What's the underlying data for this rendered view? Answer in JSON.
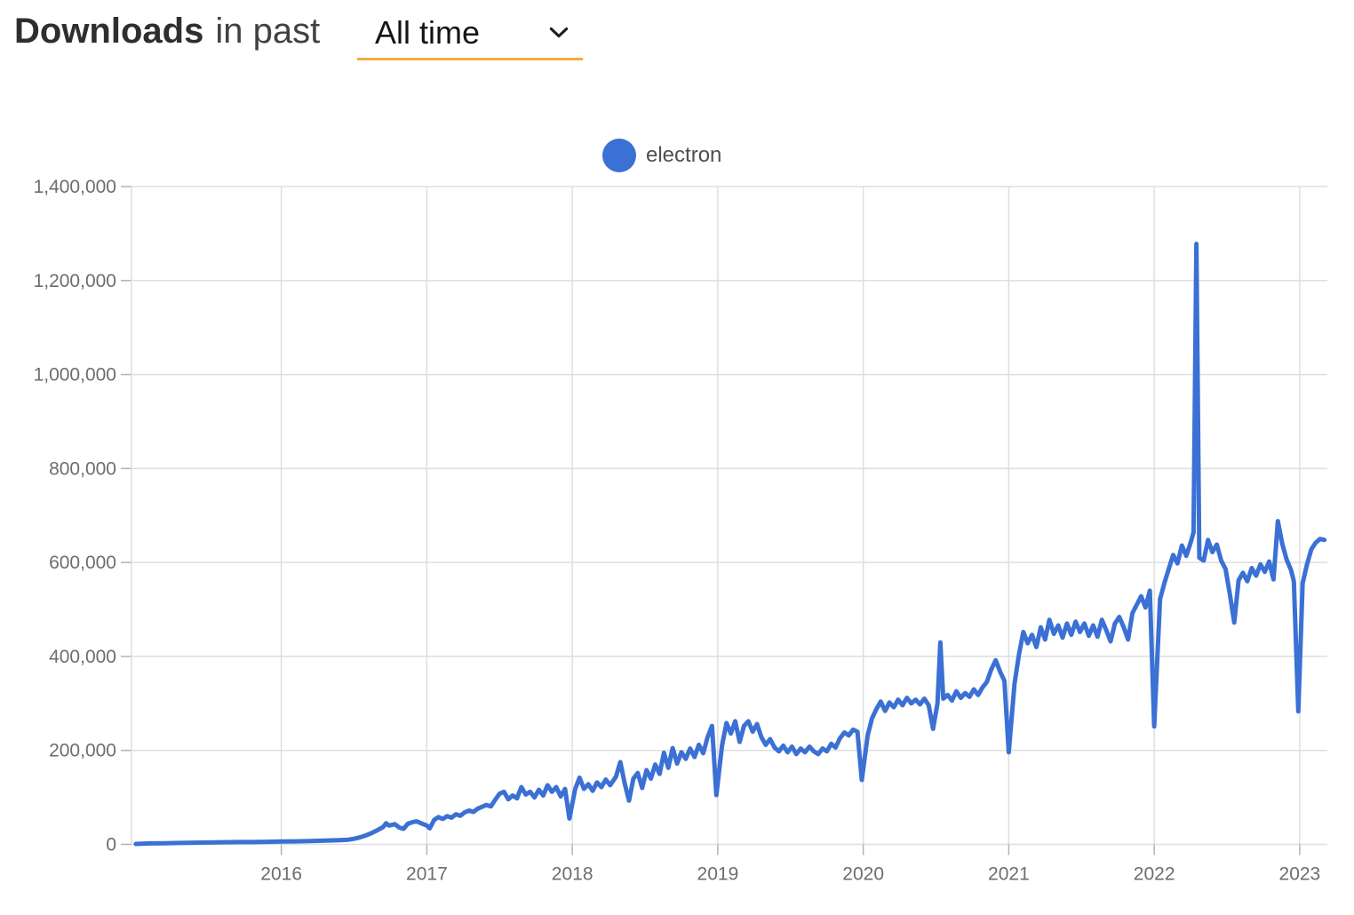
{
  "header": {
    "title": "Downloads",
    "subtitle": "in past",
    "range_selector": {
      "value": "All time"
    }
  },
  "legend": [
    {
      "label": "electron",
      "color": "#3B70D4"
    }
  ],
  "colors": {
    "series_blue": "#3B70D4",
    "underline_orange": "#F3A93F",
    "axis_label": "#6d6d6d",
    "gridline": "#dedede",
    "tick": "#b3b3b3",
    "legend_text": "#4f4f4f",
    "title_text": "#2e2e2e"
  },
  "chart_data": {
    "type": "line",
    "title": "",
    "xlabel": "",
    "ylabel": "",
    "grid": true,
    "legend_position": "top-center",
    "x_ticks": [
      2016,
      2017,
      2018,
      2019,
      2020,
      2021,
      2022,
      2023
    ],
    "y_ticks": [
      0,
      200000,
      400000,
      600000,
      800000,
      1000000,
      1200000,
      1400000
    ],
    "x_range": [
      2014.97,
      2023.19
    ],
    "y_range": [
      0,
      1400000
    ],
    "series": [
      {
        "name": "electron",
        "color": "#3B70D4",
        "points": [
          [
            2015.0,
            1000
          ],
          [
            2015.1,
            2000
          ],
          [
            2015.2,
            2500
          ],
          [
            2015.3,
            3000
          ],
          [
            2015.4,
            3500
          ],
          [
            2015.5,
            4000
          ],
          [
            2015.6,
            4500
          ],
          [
            2015.7,
            5000
          ],
          [
            2015.8,
            5000
          ],
          [
            2015.9,
            5500
          ],
          [
            2016.0,
            6000
          ],
          [
            2016.1,
            6500
          ],
          [
            2016.2,
            7000
          ],
          [
            2016.3,
            8000
          ],
          [
            2016.4,
            9000
          ],
          [
            2016.46,
            10000
          ],
          [
            2016.5,
            12000
          ],
          [
            2016.54,
            15000
          ],
          [
            2016.58,
            19000
          ],
          [
            2016.62,
            24000
          ],
          [
            2016.66,
            30000
          ],
          [
            2016.7,
            37000
          ],
          [
            2016.72,
            45000
          ],
          [
            2016.74,
            40000
          ],
          [
            2016.78,
            43000
          ],
          [
            2016.81,
            36000
          ],
          [
            2016.84,
            33000
          ],
          [
            2016.87,
            44000
          ],
          [
            2016.9,
            47000
          ],
          [
            2016.93,
            49000
          ],
          [
            2016.96,
            45000
          ],
          [
            2017.0,
            40000
          ],
          [
            2017.02,
            34000
          ],
          [
            2017.05,
            52000
          ],
          [
            2017.08,
            58000
          ],
          [
            2017.11,
            54000
          ],
          [
            2017.14,
            60000
          ],
          [
            2017.17,
            57000
          ],
          [
            2017.2,
            64000
          ],
          [
            2017.23,
            61000
          ],
          [
            2017.26,
            68000
          ],
          [
            2017.29,
            72000
          ],
          [
            2017.32,
            69000
          ],
          [
            2017.35,
            76000
          ],
          [
            2017.38,
            80000
          ],
          [
            2017.41,
            84000
          ],
          [
            2017.44,
            81000
          ],
          [
            2017.47,
            95000
          ],
          [
            2017.5,
            108000
          ],
          [
            2017.53,
            112000
          ],
          [
            2017.56,
            96000
          ],
          [
            2017.59,
            104000
          ],
          [
            2017.62,
            98000
          ],
          [
            2017.65,
            122000
          ],
          [
            2017.68,
            106000
          ],
          [
            2017.71,
            112000
          ],
          [
            2017.74,
            100000
          ],
          [
            2017.77,
            116000
          ],
          [
            2017.8,
            104000
          ],
          [
            2017.83,
            126000
          ],
          [
            2017.86,
            112000
          ],
          [
            2017.89,
            122000
          ],
          [
            2017.92,
            102000
          ],
          [
            2017.95,
            118000
          ],
          [
            2017.98,
            55000
          ],
          [
            2018.02,
            118000
          ],
          [
            2018.05,
            142000
          ],
          [
            2018.08,
            118000
          ],
          [
            2018.11,
            128000
          ],
          [
            2018.14,
            114000
          ],
          [
            2018.17,
            132000
          ],
          [
            2018.2,
            122000
          ],
          [
            2018.23,
            138000
          ],
          [
            2018.26,
            126000
          ],
          [
            2018.3,
            144000
          ],
          [
            2018.33,
            175000
          ],
          [
            2018.36,
            130000
          ],
          [
            2018.39,
            93000
          ],
          [
            2018.42,
            140000
          ],
          [
            2018.45,
            152000
          ],
          [
            2018.48,
            120000
          ],
          [
            2018.51,
            158000
          ],
          [
            2018.54,
            140000
          ],
          [
            2018.57,
            170000
          ],
          [
            2018.6,
            150000
          ],
          [
            2018.63,
            195000
          ],
          [
            2018.66,
            163000
          ],
          [
            2018.69,
            205000
          ],
          [
            2018.72,
            172000
          ],
          [
            2018.75,
            196000
          ],
          [
            2018.78,
            182000
          ],
          [
            2018.81,
            204000
          ],
          [
            2018.84,
            186000
          ],
          [
            2018.87,
            212000
          ],
          [
            2018.9,
            194000
          ],
          [
            2018.93,
            228000
          ],
          [
            2018.96,
            252000
          ],
          [
            2018.99,
            105000
          ],
          [
            2019.03,
            212000
          ],
          [
            2019.06,
            258000
          ],
          [
            2019.09,
            236000
          ],
          [
            2019.12,
            262000
          ],
          [
            2019.15,
            218000
          ],
          [
            2019.18,
            252000
          ],
          [
            2019.21,
            262000
          ],
          [
            2019.24,
            240000
          ],
          [
            2019.27,
            256000
          ],
          [
            2019.3,
            228000
          ],
          [
            2019.33,
            212000
          ],
          [
            2019.36,
            224000
          ],
          [
            2019.39,
            206000
          ],
          [
            2019.42,
            198000
          ],
          [
            2019.45,
            210000
          ],
          [
            2019.48,
            196000
          ],
          [
            2019.51,
            208000
          ],
          [
            2019.54,
            192000
          ],
          [
            2019.57,
            204000
          ],
          [
            2019.6,
            196000
          ],
          [
            2019.63,
            208000
          ],
          [
            2019.66,
            198000
          ],
          [
            2019.69,
            192000
          ],
          [
            2019.72,
            204000
          ],
          [
            2019.75,
            198000
          ],
          [
            2019.78,
            214000
          ],
          [
            2019.81,
            206000
          ],
          [
            2019.84,
            226000
          ],
          [
            2019.87,
            238000
          ],
          [
            2019.9,
            232000
          ],
          [
            2019.93,
            244000
          ],
          [
            2019.96,
            240000
          ],
          [
            2019.99,
            137000
          ],
          [
            2020.03,
            232000
          ],
          [
            2020.06,
            268000
          ],
          [
            2020.09,
            288000
          ],
          [
            2020.12,
            304000
          ],
          [
            2020.15,
            284000
          ],
          [
            2020.18,
            302000
          ],
          [
            2020.21,
            292000
          ],
          [
            2020.24,
            308000
          ],
          [
            2020.27,
            296000
          ],
          [
            2020.3,
            312000
          ],
          [
            2020.33,
            300000
          ],
          [
            2020.36,
            308000
          ],
          [
            2020.39,
            298000
          ],
          [
            2020.42,
            310000
          ],
          [
            2020.45,
            296000
          ],
          [
            2020.48,
            246000
          ],
          [
            2020.51,
            300000
          ],
          [
            2020.53,
            430000
          ],
          [
            2020.55,
            310000
          ],
          [
            2020.58,
            318000
          ],
          [
            2020.61,
            306000
          ],
          [
            2020.64,
            326000
          ],
          [
            2020.67,
            312000
          ],
          [
            2020.7,
            322000
          ],
          [
            2020.73,
            314000
          ],
          [
            2020.76,
            330000
          ],
          [
            2020.79,
            318000
          ],
          [
            2020.82,
            334000
          ],
          [
            2020.85,
            346000
          ],
          [
            2020.88,
            372000
          ],
          [
            2020.91,
            392000
          ],
          [
            2020.94,
            368000
          ],
          [
            2020.97,
            348000
          ],
          [
            2021.0,
            196000
          ],
          [
            2021.04,
            342000
          ],
          [
            2021.07,
            404000
          ],
          [
            2021.1,
            452000
          ],
          [
            2021.13,
            428000
          ],
          [
            2021.16,
            446000
          ],
          [
            2021.19,
            420000
          ],
          [
            2021.22,
            462000
          ],
          [
            2021.25,
            436000
          ],
          [
            2021.28,
            478000
          ],
          [
            2021.31,
            448000
          ],
          [
            2021.34,
            466000
          ],
          [
            2021.37,
            440000
          ],
          [
            2021.4,
            470000
          ],
          [
            2021.43,
            446000
          ],
          [
            2021.46,
            474000
          ],
          [
            2021.49,
            452000
          ],
          [
            2021.52,
            470000
          ],
          [
            2021.55,
            444000
          ],
          [
            2021.58,
            466000
          ],
          [
            2021.61,
            442000
          ],
          [
            2021.64,
            478000
          ],
          [
            2021.67,
            456000
          ],
          [
            2021.7,
            432000
          ],
          [
            2021.73,
            470000
          ],
          [
            2021.76,
            484000
          ],
          [
            2021.79,
            462000
          ],
          [
            2021.82,
            436000
          ],
          [
            2021.85,
            492000
          ],
          [
            2021.88,
            510000
          ],
          [
            2021.91,
            528000
          ],
          [
            2021.94,
            504000
          ],
          [
            2021.97,
            540000
          ],
          [
            2022.0,
            251000
          ],
          [
            2022.04,
            522000
          ],
          [
            2022.07,
            556000
          ],
          [
            2022.1,
            586000
          ],
          [
            2022.13,
            616000
          ],
          [
            2022.16,
            598000
          ],
          [
            2022.19,
            636000
          ],
          [
            2022.22,
            614000
          ],
          [
            2022.25,
            642000
          ],
          [
            2022.27,
            664000
          ],
          [
            2022.29,
            1278000
          ],
          [
            2022.31,
            610000
          ],
          [
            2022.34,
            604000
          ],
          [
            2022.37,
            648000
          ],
          [
            2022.4,
            622000
          ],
          [
            2022.43,
            638000
          ],
          [
            2022.46,
            604000
          ],
          [
            2022.49,
            586000
          ],
          [
            2022.52,
            532000
          ],
          [
            2022.55,
            472000
          ],
          [
            2022.58,
            562000
          ],
          [
            2022.61,
            578000
          ],
          [
            2022.64,
            560000
          ],
          [
            2022.67,
            588000
          ],
          [
            2022.7,
            572000
          ],
          [
            2022.73,
            596000
          ],
          [
            2022.76,
            580000
          ],
          [
            2022.79,
            602000
          ],
          [
            2022.82,
            564000
          ],
          [
            2022.85,
            688000
          ],
          [
            2022.88,
            640000
          ],
          [
            2022.91,
            606000
          ],
          [
            2022.94,
            584000
          ],
          [
            2022.96,
            560000
          ],
          [
            2022.99,
            283000
          ],
          [
            2023.02,
            556000
          ],
          [
            2023.05,
            596000
          ],
          [
            2023.08,
            628000
          ],
          [
            2023.11,
            642000
          ],
          [
            2023.14,
            650000
          ],
          [
            2023.17,
            648000
          ]
        ]
      }
    ]
  }
}
